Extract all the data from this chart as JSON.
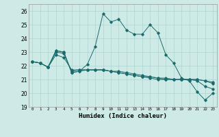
{
  "title": "",
  "xlabel": "Humidex (Indice chaleur)",
  "ylabel": "",
  "background_color": "#ceeae7",
  "line_color": "#1a6b6b",
  "grid_color": "#aed4d0",
  "xlim": [
    -0.5,
    23.5
  ],
  "ylim": [
    19,
    26.5
  ],
  "yticks": [
    19,
    20,
    21,
    22,
    23,
    24,
    25,
    26
  ],
  "xticks": [
    0,
    1,
    2,
    3,
    4,
    5,
    6,
    7,
    8,
    9,
    10,
    11,
    12,
    13,
    14,
    15,
    16,
    17,
    18,
    19,
    20,
    21,
    22,
    23
  ],
  "series": [
    [
      22.3,
      22.2,
      21.9,
      23.1,
      23.0,
      21.5,
      21.6,
      22.1,
      23.4,
      25.8,
      25.2,
      25.4,
      24.6,
      24.3,
      24.3,
      25.0,
      24.4,
      22.8,
      22.2,
      21.1,
      20.9,
      20.1,
      19.5,
      20.0
    ],
    [
      22.3,
      22.2,
      21.9,
      23.1,
      23.0,
      21.5,
      21.6,
      21.7,
      21.7,
      21.7,
      21.6,
      21.5,
      21.4,
      21.3,
      21.2,
      21.2,
      21.1,
      21.1,
      21.0,
      21.0,
      21.0,
      20.9,
      20.5,
      20.3
    ],
    [
      22.3,
      22.2,
      21.9,
      23.0,
      22.9,
      21.6,
      21.7,
      21.7,
      21.7,
      21.7,
      21.6,
      21.6,
      21.5,
      21.4,
      21.3,
      21.2,
      21.1,
      21.0,
      21.0,
      21.0,
      21.0,
      21.0,
      20.9,
      20.8
    ],
    [
      22.3,
      22.2,
      21.9,
      22.8,
      22.6,
      21.7,
      21.7,
      21.7,
      21.7,
      21.7,
      21.6,
      21.5,
      21.4,
      21.3,
      21.2,
      21.1,
      21.0,
      21.0,
      21.0,
      21.0,
      21.0,
      21.0,
      20.9,
      20.7
    ]
  ]
}
